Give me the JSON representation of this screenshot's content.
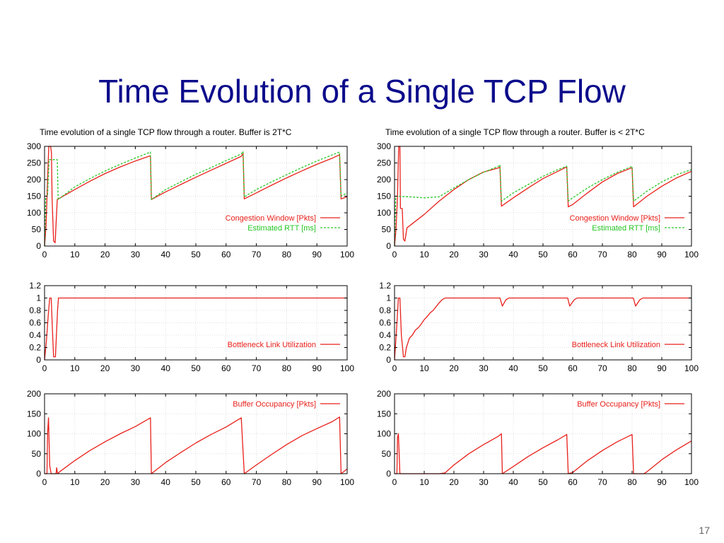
{
  "slide": {
    "title": "Time Evolution of a Single TCP Flow",
    "page_number": "17"
  },
  "captions": {
    "left": "Time evolution of a single TCP flow through a router. Buffer is 2T*C",
    "right": "Time evolution of a single TCP flow through a router. Buffer is < 2T*C"
  },
  "colors": {
    "red": "#e8201a",
    "green": "#28c828",
    "title": "#0c0c8c"
  },
  "chart_data": [
    {
      "id": "left-cwnd",
      "type": "line",
      "xlim": [
        0,
        100
      ],
      "ylim": [
        0,
        300
      ],
      "xticks": [
        0,
        10,
        20,
        30,
        40,
        50,
        60,
        70,
        80,
        90,
        100
      ],
      "yticks": [
        0,
        50,
        100,
        150,
        200,
        250,
        300
      ],
      "grid": true,
      "legend_position": "bottom-right",
      "series": [
        {
          "name": "Congestion Window [Pkts]",
          "color": "#e8201a",
          "style": "solid",
          "points": [
            [
              0,
              0
            ],
            [
              0.5,
              60
            ],
            [
              1,
              200
            ],
            [
              1.4,
              300
            ],
            [
              2,
              300
            ],
            [
              2.3,
              280
            ],
            [
              2.5,
              140
            ],
            [
              3,
              15
            ],
            [
              3.5,
              10
            ],
            [
              4.2,
              140
            ],
            [
              10,
              170
            ],
            [
              15,
              195
            ],
            [
              20,
              218
            ],
            [
              25,
              238
            ],
            [
              30,
              256
            ],
            [
              35,
              272
            ],
            [
              35.3,
              140
            ],
            [
              40,
              163
            ],
            [
              45,
              185
            ],
            [
              50,
              207
            ],
            [
              55,
              228
            ],
            [
              60,
              249
            ],
            [
              65,
              270
            ],
            [
              65.6,
              278
            ],
            [
              66,
              142
            ],
            [
              70,
              160
            ],
            [
              75,
              183
            ],
            [
              80,
              205
            ],
            [
              85,
              226
            ],
            [
              90,
              246
            ],
            [
              95,
              264
            ],
            [
              97.5,
              275
            ],
            [
              98,
              142
            ],
            [
              100,
              148
            ]
          ]
        },
        {
          "name": "Estimated RTT    [ms]",
          "color": "#28c828",
          "style": "dashed",
          "points": [
            [
              0,
              0
            ],
            [
              0.4,
              150
            ],
            [
              1,
              150
            ],
            [
              1.5,
              260
            ],
            [
              2,
              260
            ],
            [
              4.2,
              260
            ],
            [
              4.5,
              140
            ],
            [
              10,
              178
            ],
            [
              15,
              203
            ],
            [
              20,
              226
            ],
            [
              25,
              246
            ],
            [
              30,
              265
            ],
            [
              35,
              283
            ],
            [
              35.3,
              140
            ],
            [
              40,
              170
            ],
            [
              45,
              193
            ],
            [
              50,
              216
            ],
            [
              55,
              236
            ],
            [
              60,
              257
            ],
            [
              65,
              277
            ],
            [
              65.6,
              285
            ],
            [
              66,
              148
            ],
            [
              70,
              170
            ],
            [
              75,
              193
            ],
            [
              80,
              215
            ],
            [
              85,
              236
            ],
            [
              90,
              256
            ],
            [
              95,
              274
            ],
            [
              97.5,
              283
            ],
            [
              98,
              150
            ],
            [
              100,
              160
            ]
          ]
        }
      ]
    },
    {
      "id": "left-util",
      "type": "line",
      "xlim": [
        0,
        100
      ],
      "ylim": [
        0,
        1.2
      ],
      "xticks": [
        0,
        10,
        20,
        30,
        40,
        50,
        60,
        70,
        80,
        90,
        100
      ],
      "yticks": [
        0,
        0.2,
        0.4,
        0.6,
        0.8,
        1,
        1.2
      ],
      "grid": true,
      "legend_position": "bottom-right",
      "series": [
        {
          "name": "Bottleneck Link Utilization",
          "color": "#e8201a",
          "style": "solid",
          "points": [
            [
              0,
              0
            ],
            [
              0.6,
              0.3
            ],
            [
              1.2,
              0.7
            ],
            [
              1.7,
              1
            ],
            [
              2.2,
              1
            ],
            [
              2.6,
              0.5
            ],
            [
              3,
              0.05
            ],
            [
              3.6,
              0.05
            ],
            [
              4.3,
              0.8
            ],
            [
              4.6,
              1
            ],
            [
              100,
              1
            ]
          ]
        }
      ]
    },
    {
      "id": "left-buffer",
      "type": "line",
      "xlim": [
        0,
        100
      ],
      "ylim": [
        0,
        200
      ],
      "xticks": [
        0,
        10,
        20,
        30,
        40,
        50,
        60,
        70,
        80,
        90,
        100
      ],
      "yticks": [
        0,
        50,
        100,
        150,
        200
      ],
      "grid": true,
      "legend_position": "top-right",
      "series": [
        {
          "name": "Buffer Occupancy [Pkts]",
          "color": "#e8201a",
          "style": "solid",
          "points": [
            [
              0,
              0
            ],
            [
              0.8,
              0
            ],
            [
              1,
              100
            ],
            [
              1.3,
              140
            ],
            [
              1.7,
              20
            ],
            [
              2.2,
              0
            ],
            [
              3.8,
              0
            ],
            [
              4,
              15
            ],
            [
              4.3,
              0
            ],
            [
              5,
              5
            ],
            [
              10,
              33
            ],
            [
              15,
              58
            ],
            [
              20,
              80
            ],
            [
              25,
              100
            ],
            [
              30,
              118
            ],
            [
              35,
              140
            ],
            [
              35.3,
              0
            ],
            [
              40,
              28
            ],
            [
              45,
              53
            ],
            [
              50,
              77
            ],
            [
              55,
              98
            ],
            [
              60,
              117
            ],
            [
              65,
              140
            ],
            [
              66,
              0
            ],
            [
              70,
              22
            ],
            [
              75,
              48
            ],
            [
              80,
              73
            ],
            [
              85,
              95
            ],
            [
              90,
              113
            ],
            [
              95,
              130
            ],
            [
              97.5,
              142
            ],
            [
              98,
              0
            ],
            [
              100,
              12
            ]
          ]
        }
      ]
    },
    {
      "id": "right-cwnd",
      "type": "line",
      "xlim": [
        0,
        100
      ],
      "ylim": [
        0,
        300
      ],
      "xticks": [
        0,
        10,
        20,
        30,
        40,
        50,
        60,
        70,
        80,
        90,
        100
      ],
      "yticks": [
        0,
        50,
        100,
        150,
        200,
        250,
        300
      ],
      "grid": true,
      "legend_position": "bottom-right",
      "series": [
        {
          "name": "Congestion Window [Pkts]",
          "color": "#e8201a",
          "style": "solid",
          "points": [
            [
              0,
              0
            ],
            [
              0.5,
              50
            ],
            [
              1,
              150
            ],
            [
              1.4,
              300
            ],
            [
              1.8,
              300
            ],
            [
              2,
              113
            ],
            [
              2.6,
              113
            ],
            [
              3,
              20
            ],
            [
              3.5,
              15
            ],
            [
              4.2,
              55
            ],
            [
              10,
              95
            ],
            [
              15,
              135
            ],
            [
              20,
              170
            ],
            [
              25,
              200
            ],
            [
              30,
              223
            ],
            [
              35,
              235
            ],
            [
              35.5,
              238
            ],
            [
              36,
              120
            ],
            [
              40,
              145
            ],
            [
              45,
              175
            ],
            [
              50,
              203
            ],
            [
              55,
              225
            ],
            [
              58,
              238
            ],
            [
              58.5,
              118
            ],
            [
              60,
              125
            ],
            [
              65,
              160
            ],
            [
              70,
              193
            ],
            [
              75,
              218
            ],
            [
              80,
              236
            ],
            [
              80.5,
              118
            ],
            [
              85,
              150
            ],
            [
              90,
              180
            ],
            [
              95,
              205
            ],
            [
              100,
              225
            ]
          ]
        },
        {
          "name": "Estimated RTT    [ms]",
          "color": "#28c828",
          "style": "dashed",
          "points": [
            [
              0,
              0
            ],
            [
              0.4,
              150
            ],
            [
              5,
              148
            ],
            [
              10,
              145
            ],
            [
              15,
              148
            ],
            [
              20,
              175
            ],
            [
              25,
              200
            ],
            [
              30,
              222
            ],
            [
              35,
              240
            ],
            [
              35.5,
              245
            ],
            [
              36,
              135
            ],
            [
              40,
              160
            ],
            [
              45,
              185
            ],
            [
              50,
              210
            ],
            [
              55,
              230
            ],
            [
              58,
              240
            ],
            [
              58.5,
              135
            ],
            [
              60,
              145
            ],
            [
              65,
              175
            ],
            [
              70,
              200
            ],
            [
              75,
              222
            ],
            [
              80,
              240
            ],
            [
              80.5,
              135
            ],
            [
              85,
              165
            ],
            [
              90,
              193
            ],
            [
              95,
              215
            ],
            [
              100,
              230
            ]
          ]
        }
      ]
    },
    {
      "id": "right-util",
      "type": "line",
      "xlim": [
        0,
        100
      ],
      "ylim": [
        0,
        1.2
      ],
      "xticks": [
        0,
        10,
        20,
        30,
        40,
        50,
        60,
        70,
        80,
        90,
        100
      ],
      "yticks": [
        0,
        0.2,
        0.4,
        0.6,
        0.8,
        1,
        1.2
      ],
      "grid": true,
      "legend_position": "bottom-right",
      "series": [
        {
          "name": "Bottleneck Link Utilization",
          "color": "#e8201a",
          "style": "solid",
          "points": [
            [
              0,
              0
            ],
            [
              0.7,
              0.5
            ],
            [
              1.3,
              1
            ],
            [
              1.8,
              1
            ],
            [
              2.3,
              0.4
            ],
            [
              3,
              0.05
            ],
            [
              3.5,
              0.05
            ],
            [
              4,
              0.2
            ],
            [
              5,
              0.35
            ],
            [
              6,
              0.4
            ],
            [
              7,
              0.48
            ],
            [
              8,
              0.52
            ],
            [
              9,
              0.58
            ],
            [
              10,
              0.65
            ],
            [
              11,
              0.7
            ],
            [
              12,
              0.76
            ],
            [
              13,
              0.8
            ],
            [
              14,
              0.86
            ],
            [
              15,
              0.92
            ],
            [
              16,
              0.97
            ],
            [
              17,
              1
            ],
            [
              35.5,
              1
            ],
            [
              36.3,
              0.87
            ],
            [
              37.5,
              0.97
            ],
            [
              38.5,
              1
            ],
            [
              58.3,
              1
            ],
            [
              59,
              0.87
            ],
            [
              60.5,
              0.97
            ],
            [
              61.5,
              1
            ],
            [
              80.4,
              1
            ],
            [
              81.2,
              0.87
            ],
            [
              82.6,
              0.97
            ],
            [
              83.6,
              1
            ],
            [
              100,
              1
            ]
          ]
        }
      ]
    },
    {
      "id": "right-buffer",
      "type": "line",
      "xlim": [
        0,
        100
      ],
      "ylim": [
        0,
        200
      ],
      "xticks": [
        0,
        10,
        20,
        30,
        40,
        50,
        60,
        70,
        80,
        90,
        100
      ],
      "yticks": [
        0,
        50,
        100,
        150,
        200
      ],
      "grid": true,
      "legend_position": "top-right",
      "series": [
        {
          "name": "Buffer Occupancy [Pkts]",
          "color": "#e8201a",
          "style": "solid",
          "points": [
            [
              0,
              0
            ],
            [
              0.8,
              0
            ],
            [
              1,
              90
            ],
            [
              1.3,
              100
            ],
            [
              1.8,
              0
            ],
            [
              15,
              0
            ],
            [
              17,
              2
            ],
            [
              20,
              22
            ],
            [
              25,
              50
            ],
            [
              30,
              73
            ],
            [
              35,
              94
            ],
            [
              36,
              100
            ],
            [
              36.3,
              0
            ],
            [
              40,
              18
            ],
            [
              45,
              43
            ],
            [
              50,
              65
            ],
            [
              55,
              85
            ],
            [
              58,
              98
            ],
            [
              58.5,
              0
            ],
            [
              60,
              3
            ],
            [
              65,
              33
            ],
            [
              70,
              58
            ],
            [
              75,
              80
            ],
            [
              80,
              98
            ],
            [
              80.5,
              0
            ],
            [
              84,
              0
            ],
            [
              85,
              5
            ],
            [
              90,
              35
            ],
            [
              95,
              60
            ],
            [
              100,
              82
            ]
          ]
        }
      ]
    }
  ]
}
